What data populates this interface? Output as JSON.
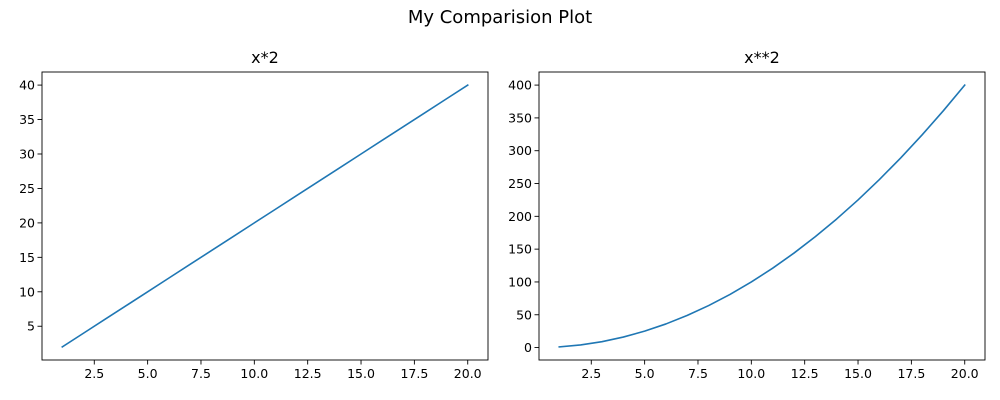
{
  "figure": {
    "suptitle": "My Comparision Plot"
  },
  "chart_data": [
    {
      "type": "line",
      "title": "x*2",
      "xlabel": "",
      "ylabel": "",
      "xlim": [
        0.05,
        20.95
      ],
      "ylim": [
        0.1,
        41.9
      ],
      "xticks": [
        2.5,
        5.0,
        7.5,
        10.0,
        12.5,
        15.0,
        17.5,
        20.0
      ],
      "xtick_labels": [
        "2.5",
        "5.0",
        "7.5",
        "10.0",
        "12.5",
        "15.0",
        "17.5",
        "20.0"
      ],
      "yticks": [
        5,
        10,
        15,
        20,
        25,
        30,
        35,
        40
      ],
      "ytick_labels": [
        "5",
        "10",
        "15",
        "20",
        "25",
        "30",
        "35",
        "40"
      ],
      "grid": false,
      "series": [
        {
          "color": "#1f77b4",
          "x": [
            1,
            2,
            3,
            4,
            5,
            6,
            7,
            8,
            9,
            10,
            11,
            12,
            13,
            14,
            15,
            16,
            17,
            18,
            19,
            20
          ],
          "y": [
            2,
            4,
            6,
            8,
            10,
            12,
            14,
            16,
            18,
            20,
            22,
            24,
            26,
            28,
            30,
            32,
            34,
            36,
            38,
            40
          ]
        }
      ]
    },
    {
      "type": "line",
      "title": "x**2",
      "xlabel": "",
      "ylabel": "",
      "xlim": [
        0.05,
        20.95
      ],
      "ylim": [
        -18.95,
        419.95
      ],
      "xticks": [
        2.5,
        5.0,
        7.5,
        10.0,
        12.5,
        15.0,
        17.5,
        20.0
      ],
      "xtick_labels": [
        "2.5",
        "5.0",
        "7.5",
        "10.0",
        "12.5",
        "15.0",
        "17.5",
        "20.0"
      ],
      "yticks": [
        0,
        50,
        100,
        150,
        200,
        250,
        300,
        350,
        400
      ],
      "ytick_labels": [
        "0",
        "50",
        "100",
        "150",
        "200",
        "250",
        "300",
        "350",
        "400"
      ],
      "grid": false,
      "series": [
        {
          "color": "#1f77b4",
          "x": [
            1,
            2,
            3,
            4,
            5,
            6,
            7,
            8,
            9,
            10,
            11,
            12,
            13,
            14,
            15,
            16,
            17,
            18,
            19,
            20
          ],
          "y": [
            1,
            4,
            9,
            16,
            25,
            36,
            49,
            64,
            81,
            100,
            121,
            144,
            169,
            196,
            225,
            256,
            289,
            324,
            361,
            400
          ]
        }
      ]
    }
  ]
}
